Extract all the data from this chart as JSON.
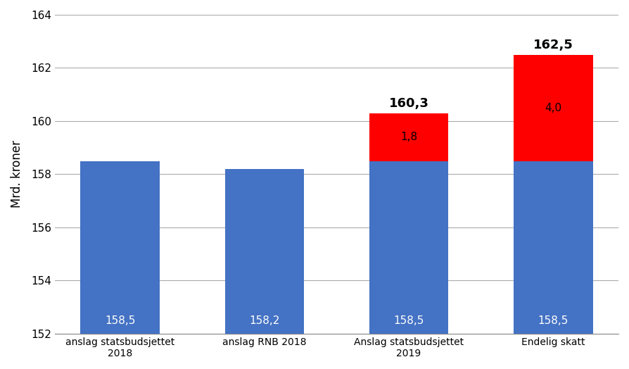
{
  "categories": [
    "anslag statsbudsjettet\n2018",
    "anslag RNB 2018",
    "Anslag statsbudsjettet\n2019",
    "Endelig skatt"
  ],
  "blue_values": [
    158.5,
    158.2,
    158.5,
    158.5
  ],
  "red_values": [
    0,
    0,
    1.8,
    4.0
  ],
  "total_labels": [
    "",
    "",
    "160,3",
    "162,5"
  ],
  "bar_labels": [
    "158,5",
    "158,2",
    "158,5",
    "158,5"
  ],
  "red_labels": [
    "",
    "",
    "1,8",
    "4,0"
  ],
  "blue_color": "#4472C4",
  "red_color": "#FF0000",
  "ylabel": "Mrd. kroner",
  "ylim_min": 152,
  "ylim_max": 164,
  "yticks": [
    152,
    154,
    156,
    158,
    160,
    162,
    164
  ],
  "bar_width": 0.55,
  "bg_color": "#FFFFFF",
  "grid_color": "#AAAAAA",
  "label_fontsize": 11,
  "total_label_fontsize": 13,
  "ylabel_fontsize": 12
}
